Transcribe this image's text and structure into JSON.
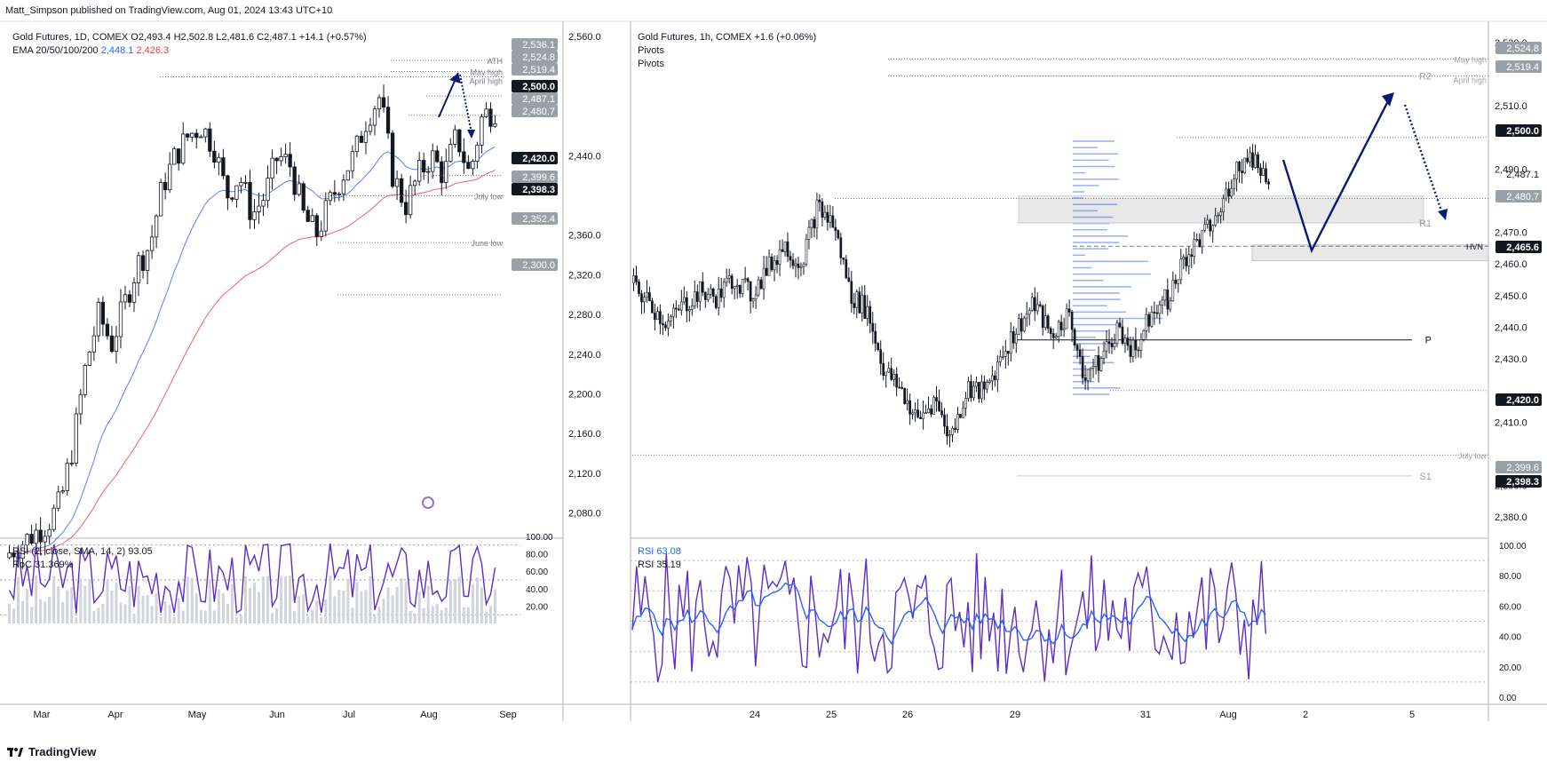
{
  "header": {
    "published": "Matt_Simpson published on TradingView.com, Aug 01, 2024 13:43 UTC+10"
  },
  "footer": {
    "brand": "TradingView"
  },
  "left": {
    "legend_line1": "Gold Futures, 1D, COMEX  O2,493.4  H2,502.8  L2,481.6  C2,487.1  +14.1 (+0.57%)",
    "ema_label": "EMA 20/50/100/200",
    "ema_value1": "2,448.1",
    "ema_value2": "2,426.3",
    "rsi_legend": "RSI (2, close, SMA, 14, 2)  93.05",
    "roc_legend": "RoC  31.369%",
    "yaxis_ticks": [
      "2,560.0",
      "2,440.0",
      "2,360.0",
      "2,320.0",
      "2,280.0",
      "2,240.0",
      "2,200.0",
      "2,160.0",
      "2,120.0",
      "2,080.0"
    ],
    "rsi_ticks": [
      "100.00",
      "80.00",
      "60.00",
      "40.00",
      "20.00"
    ],
    "xaxis": [
      "Mar",
      "Apr",
      "May",
      "Jun",
      "Jul",
      "Aug",
      "Sep"
    ],
    "price_badges": [
      {
        "label": "2,536.1",
        "style": "grey"
      },
      {
        "label": "2,524.8",
        "style": "grey"
      },
      {
        "label": "2,519.4",
        "style": "grey"
      },
      {
        "label": "2,500.0",
        "style": "black"
      },
      {
        "label": "2,487.1",
        "style": "grey"
      },
      {
        "label": "2,480.7",
        "style": "grey"
      },
      {
        "label": "2,420.0",
        "style": "black"
      },
      {
        "label": "2,399.6",
        "style": "grey"
      },
      {
        "label": "2,398.3",
        "style": "black"
      },
      {
        "label": "2,352.4",
        "style": "grey"
      },
      {
        "label": "2,300.0",
        "style": "grey"
      }
    ],
    "annotations": [
      "ATH",
      "May high",
      "April high",
      "July low",
      "June low"
    ]
  },
  "right": {
    "legend_line1": "Gold Futures, 1h, COMEX  +1.6 (+0.06%)",
    "pivots_1": "Pivots",
    "pivots_2": "Pivots",
    "rsi_legend1": "RSI  63.08",
    "rsi_legend2": "RSI  35.19",
    "yaxis_ticks": [
      "2,530.0",
      "2,510.0",
      "2,490.0",
      "2,470.0",
      "2,460.0",
      "2,450.0",
      "2,440.0",
      "2,430.0",
      "2,410.0",
      "2,390.0",
      "2,380.0"
    ],
    "rsi_ticks": [
      "100.00",
      "80.00",
      "60.00",
      "40.00",
      "20.00",
      "0.00"
    ],
    "xaxis": [
      "24",
      "25",
      "26",
      "29",
      "31",
      "Aug",
      "2",
      "5"
    ],
    "price_badges": [
      {
        "label": "2,524.8",
        "style": "grey"
      },
      {
        "label": "2,519.4",
        "style": "grey"
      },
      {
        "label": "2,500.0",
        "style": "black"
      },
      {
        "label": "2,487.1",
        "style": "plain"
      },
      {
        "label": "2,480.7",
        "style": "grey"
      },
      {
        "label": "2,465.6",
        "style": "black"
      },
      {
        "label": "2,420.0",
        "style": "black"
      },
      {
        "label": "2,399.6",
        "style": "grey"
      },
      {
        "label": "2,398.3",
        "style": "black"
      }
    ],
    "annotations": [
      "May high",
      "April high",
      "R2",
      "R1",
      "P",
      "S1",
      "HVN",
      "July low"
    ]
  },
  "colors": {
    "candle": "#131722",
    "ema_fast": "#2962ff",
    "ema_slow": "#f23645",
    "rsi_line": "#5b2ec9",
    "rsi_sma": "#2962ff",
    "arrow": "#0b1a6e",
    "volume_profile": "#2962ff",
    "zone": "#e8e8e8"
  },
  "chart_data": [
    {
      "type": "candlestick",
      "title": "Gold Futures, 1D, COMEX",
      "x_range": [
        "Feb 2024",
        "Aug 01 2024"
      ],
      "ylim": [
        2060,
        2570
      ],
      "approx_closes": [
        2040,
        2050,
        2060,
        2070,
        2090,
        2150,
        2230,
        2280,
        2250,
        2290,
        2330,
        2350,
        2410,
        2440,
        2460,
        2470,
        2450,
        2400,
        2420,
        2380,
        2400,
        2440,
        2430,
        2380,
        2360,
        2390,
        2420,
        2440,
        2480,
        2500,
        2420,
        2390,
        2420,
        2440,
        2420,
        2460,
        2420,
        2480,
        2487
      ]
    },
    {
      "type": "candlestick",
      "title": "Gold Futures, 1h, COMEX",
      "x_range": [
        "Jul 23 2024",
        "Aug 01 2024"
      ],
      "ylim": [
        2375,
        2535
      ],
      "approx_closes": [
        2453,
        2447,
        2441,
        2447,
        2451,
        2449,
        2456,
        2450,
        2458,
        2466,
        2460,
        2478,
        2472,
        2450,
        2445,
        2426,
        2420,
        2410,
        2417,
        2405,
        2421,
        2419,
        2431,
        2440,
        2447,
        2437,
        2444,
        2425,
        2430,
        2440,
        2432,
        2446,
        2449,
        2462,
        2468,
        2475,
        2490,
        2494,
        2487
      ]
    }
  ]
}
